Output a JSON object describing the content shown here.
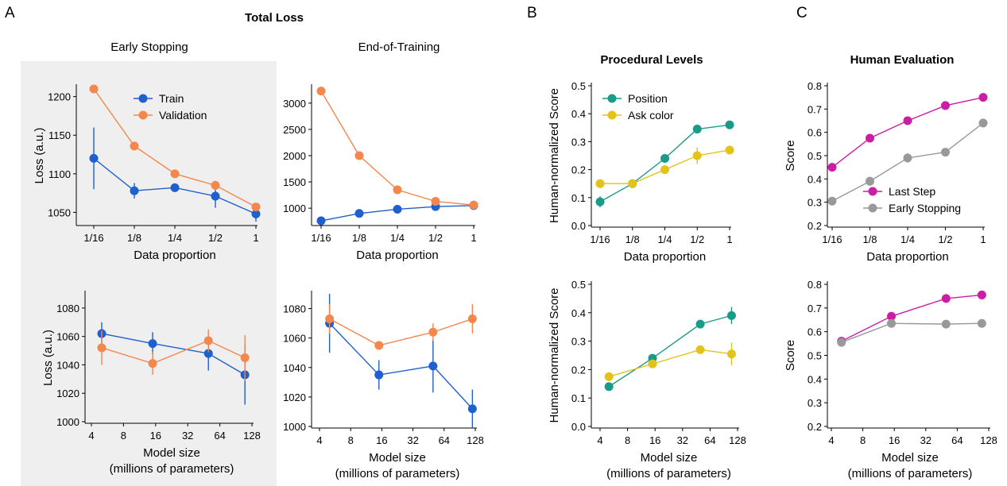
{
  "figure": {
    "panel_labels": [
      "A",
      "B",
      "C"
    ],
    "titles": {
      "total_loss": "Total Loss",
      "early_stopping": "Early Stopping",
      "end_of_training": "End-of-Training",
      "procedural_levels": "Procedural Levels",
      "human_evaluation": "Human Evaluation"
    }
  },
  "colors": {
    "train": "#1f5fce",
    "validation": "#f4874e",
    "position": "#1a9a88",
    "ask_color": "#e3c219",
    "last_step": "#cc1ea5",
    "early_stopping": "#999999",
    "shaded_bg": "#efefef"
  },
  "chart_data": [
    {
      "id": "es_data",
      "type": "line",
      "categories": [
        "1/16",
        "1/8",
        "1/4",
        "1/2",
        "1"
      ],
      "ylabel": "Loss (a.u.)",
      "xlabel": [
        "Data proportion"
      ],
      "ylim": [
        1035,
        1212
      ],
      "yticks": [
        1050,
        1100,
        1150,
        1200
      ],
      "series": [
        {
          "name": "Train",
          "color_key": "train",
          "values": [
            1120,
            1078,
            1082,
            1071,
            1048
          ],
          "err": [
            40,
            10,
            4,
            15,
            10
          ]
        },
        {
          "name": "Validation",
          "color_key": "validation",
          "values": [
            1210,
            1136,
            1100,
            1085,
            1057
          ],
          "err": [
            0,
            0,
            0,
            6,
            5
          ]
        }
      ],
      "legend": "top-right"
    },
    {
      "id": "eot_data",
      "type": "line",
      "categories": [
        "1/16",
        "1/8",
        "1/4",
        "1/2",
        "1"
      ],
      "ylabel": "",
      "xlabel": [
        "Data proportion"
      ],
      "ylim": [
        700,
        3300
      ],
      "yticks": [
        1000,
        1500,
        2000,
        2500,
        3000
      ],
      "series": [
        {
          "values": [
            760,
            900,
            980,
            1030,
            1050
          ],
          "err": [
            0,
            0,
            0,
            40,
            50
          ],
          "color_key": "train"
        },
        {
          "values": [
            3230,
            2000,
            1350,
            1130,
            1060
          ],
          "err": [
            0,
            0,
            0,
            0,
            0
          ],
          "color_key": "validation"
        }
      ]
    },
    {
      "id": "proc_data",
      "type": "line",
      "categories": [
        "1/16",
        "1/8",
        "1/4",
        "1/2",
        "1"
      ],
      "ylabel": "Human-normalized Score",
      "xlabel": [
        "Data proportion"
      ],
      "ylim": [
        0,
        0.5
      ],
      "yticks": [
        "0.0",
        "0.1",
        "0.2",
        "0.3",
        "0.4",
        "0.5"
      ],
      "series": [
        {
          "name": "Position",
          "color_key": "position",
          "values": [
            0.085,
            0.15,
            0.24,
            0.345,
            0.36
          ],
          "err": [
            0.02,
            0,
            0,
            0,
            0
          ]
        },
        {
          "name": "Ask color",
          "color_key": "ask_color",
          "values": [
            0.15,
            0.15,
            0.2,
            0.25,
            0.27
          ],
          "err": [
            0,
            0,
            0,
            0.03,
            0.015
          ]
        }
      ],
      "legend": "top-left"
    },
    {
      "id": "human_data",
      "type": "line",
      "categories": [
        "1/16",
        "1/8",
        "1/4",
        "1/2",
        "1"
      ],
      "ylabel": "Score",
      "xlabel": [
        "Data proportion"
      ],
      "ylim": [
        0.2,
        0.8
      ],
      "yticks": [
        "0.2",
        "0.3",
        "0.4",
        "0.5",
        "0.6",
        "0.7",
        "0.8"
      ],
      "series": [
        {
          "name": "Last Step",
          "color_key": "last_step",
          "values": [
            0.45,
            0.575,
            0.65,
            0.715,
            0.75
          ],
          "err": [
            0,
            0,
            0,
            0,
            0
          ]
        },
        {
          "name": "Early Stopping",
          "color_key": "early_stopping",
          "values": [
            0.305,
            0.39,
            0.49,
            0.515,
            0.64
          ],
          "err": [
            0,
            0.02,
            0.02,
            0,
            0
          ]
        }
      ],
      "legend": "bottom-right"
    },
    {
      "id": "es_model",
      "type": "line",
      "x_ticks": [
        "4",
        "8",
        "16",
        "32",
        "64",
        "128"
      ],
      "x_tick_values": [
        4,
        8,
        16,
        32,
        64,
        128
      ],
      "ylabel": "Loss (a.u.)",
      "xlabel": [
        "Model size",
        "(millions of parameters)"
      ],
      "ylim": [
        1000,
        1090
      ],
      "yticks": [
        1000,
        1020,
        1040,
        1060,
        1080
      ],
      "series": [
        {
          "color_key": "train",
          "x": [
            5,
            15,
            50,
            110
          ],
          "values": [
            1062,
            1055,
            1048,
            1033
          ],
          "err": [
            8,
            8,
            12,
            21
          ]
        },
        {
          "color_key": "validation",
          "x": [
            5,
            15,
            50,
            110
          ],
          "values": [
            1052,
            1041,
            1057,
            1045
          ],
          "err": [
            12,
            8,
            8,
            16
          ]
        }
      ]
    },
    {
      "id": "eot_model",
      "type": "line",
      "x_ticks": [
        "4",
        "8",
        "16",
        "32",
        "64",
        "128"
      ],
      "x_tick_values": [
        4,
        8,
        16,
        32,
        64,
        128
      ],
      "ylabel": "",
      "xlabel": [
        "Model size",
        "(millions of parameters)"
      ],
      "ylim": [
        1000,
        1090
      ],
      "yticks": [
        1000,
        1020,
        1040,
        1060,
        1080
      ],
      "series": [
        {
          "color_key": "train",
          "x": [
            5,
            15,
            50,
            120
          ],
          "values": [
            1070,
            1035,
            1041,
            1012
          ],
          "err": [
            20,
            10,
            18,
            13
          ]
        },
        {
          "color_key": "validation",
          "x": [
            5,
            15,
            50,
            120
          ],
          "values": [
            1073,
            1055,
            1064,
            1073
          ],
          "err": [
            10,
            0,
            6,
            10
          ]
        }
      ]
    },
    {
      "id": "proc_model",
      "type": "line",
      "x_ticks": [
        "4",
        "8",
        "16",
        "32",
        "64",
        "128"
      ],
      "x_tick_values": [
        4,
        8,
        16,
        32,
        64,
        128
      ],
      "ylabel": "Human-normalized Score",
      "xlabel": [
        "Model size",
        "(millions of parameters)"
      ],
      "ylim": [
        0,
        0.5
      ],
      "yticks": [
        "0.0",
        "0.1",
        "0.2",
        "0.3",
        "0.4",
        "0.5"
      ],
      "series": [
        {
          "color_key": "position",
          "x": [
            5,
            15,
            50,
            110
          ],
          "values": [
            0.14,
            0.24,
            0.36,
            0.39
          ],
          "err": [
            0,
            0.01,
            0,
            0.03
          ]
        },
        {
          "color_key": "ask_color",
          "x": [
            5,
            15,
            50,
            110
          ],
          "values": [
            0.175,
            0.22,
            0.27,
            0.255
          ],
          "err": [
            0,
            0,
            0,
            0.04
          ]
        }
      ]
    },
    {
      "id": "human_model",
      "type": "line",
      "x_ticks": [
        "4",
        "8",
        "16",
        "32",
        "64",
        "128"
      ],
      "x_tick_values": [
        4,
        8,
        16,
        32,
        64,
        128
      ],
      "ylabel": "Score",
      "xlabel": [
        "Model size",
        "(millions of parameters)"
      ],
      "ylim": [
        0.2,
        0.8
      ],
      "yticks": [
        "0.2",
        "0.3",
        "0.4",
        "0.5",
        "0.6",
        "0.7",
        "0.8"
      ],
      "series": [
        {
          "color_key": "last_step",
          "x": [
            5,
            15,
            50,
            110
          ],
          "values": [
            0.56,
            0.665,
            0.74,
            0.755
          ],
          "err": [
            0,
            0,
            0,
            0
          ]
        },
        {
          "color_key": "early_stopping",
          "x": [
            5,
            15,
            50,
            110
          ],
          "values": [
            0.555,
            0.635,
            0.632,
            0.635
          ],
          "err": [
            0,
            0,
            0,
            0
          ]
        }
      ]
    }
  ]
}
